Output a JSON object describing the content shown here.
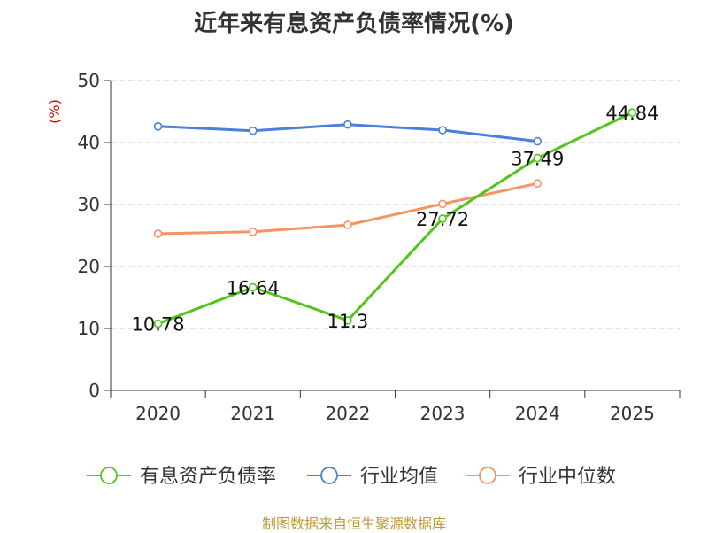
{
  "title": "近年来有息资产负债率情况(%)",
  "source": "制图数据来自恒生聚源数据库",
  "chart_data": {
    "type": "line",
    "title": "近年来有息资产负债率情况(%)",
    "ylabel": "(%)",
    "categories": [
      "2020",
      "2021",
      "2022",
      "2023",
      "2024",
      "2025"
    ],
    "ylim": [
      0,
      50
    ],
    "yticks": [
      0,
      10,
      20,
      30,
      40,
      50
    ],
    "grid": true,
    "legend": "bottom",
    "series": [
      {
        "name": "有息资产负债率",
        "color": "#52c41a",
        "values": [
          10.78,
          16.64,
          11.3,
          27.72,
          37.49,
          44.84
        ],
        "labels": [
          "10.78",
          "16.64",
          "11.3",
          "27.72",
          "37.49",
          "44.84"
        ]
      },
      {
        "name": "行业均值",
        "color": "#4a7fdc",
        "values": [
          42.6,
          41.9,
          42.9,
          42.0,
          40.2,
          null
        ]
      },
      {
        "name": "行业中位数",
        "color": "#f59461",
        "values": [
          25.3,
          25.6,
          26.7,
          30.1,
          33.4,
          null
        ]
      }
    ]
  }
}
